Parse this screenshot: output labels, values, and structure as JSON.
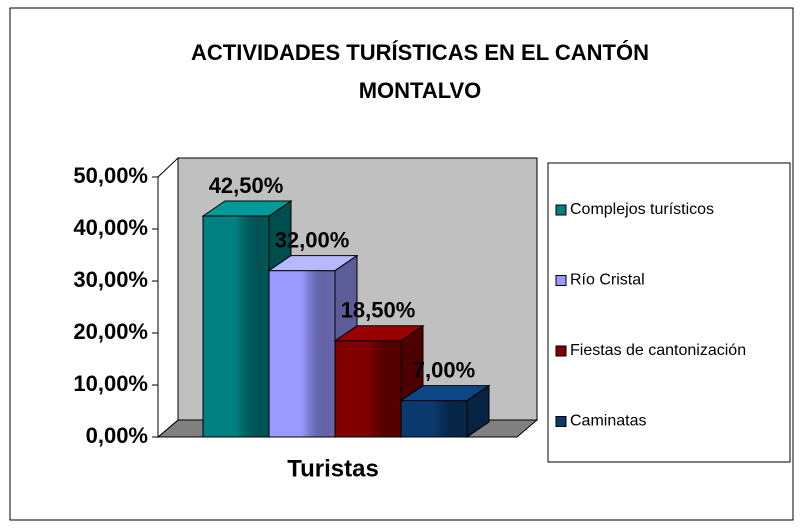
{
  "chart_data": {
    "type": "bar3d",
    "title": "ACTIVIDADES TURÍSTICAS EN EL CANTÓN MONTALVO",
    "categories": [
      "Turistas"
    ],
    "series": [
      {
        "name": "Complejos turísticos",
        "color": "#008080",
        "values": [
          42.5
        ],
        "value_labels": [
          "42,50%"
        ]
      },
      {
        "name": "Río Cristal",
        "color": "#9999ff",
        "values": [
          32
        ],
        "value_labels": [
          "32,00%"
        ]
      },
      {
        "name": "Fiestas de cantonización",
        "color": "#800000",
        "values": [
          18.5
        ],
        "value_labels": [
          "18,50%"
        ]
      },
      {
        "name": "Caminatas",
        "color": "#0a3a6e",
        "values": [
          7
        ],
        "value_labels": [
          "7,00%"
        ]
      }
    ],
    "ylim": [
      0,
      50
    ],
    "yticks": [
      {
        "value": 0,
        "label": "0,00%"
      },
      {
        "value": 10,
        "label": "10,00%"
      },
      {
        "value": 20,
        "label": "20,00%"
      },
      {
        "value": 30,
        "label": "30,00%"
      },
      {
        "value": 40,
        "label": "40,00%"
      },
      {
        "value": 50,
        "label": "50,00%"
      }
    ],
    "legend": "right"
  }
}
